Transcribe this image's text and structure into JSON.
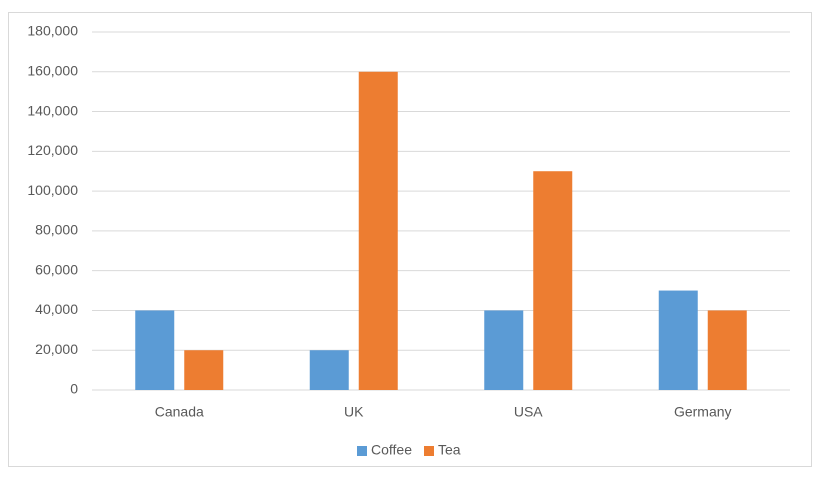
{
  "chart_data": {
    "type": "bar",
    "categories": [
      "Canada",
      "UK",
      "USA",
      "Germany"
    ],
    "series": [
      {
        "name": "Coffee",
        "color": "#5b9bd5",
        "values": [
          40000,
          20000,
          40000,
          50000
        ]
      },
      {
        "name": "Tea",
        "color": "#ed7d31",
        "values": [
          20000,
          160000,
          110000,
          40000
        ]
      }
    ],
    "ylim": [
      0,
      180000
    ],
    "yticks": [
      0,
      {
        "value": 20000,
        "label": "20,000"
      },
      {
        "value": 40000,
        "label": "40,000"
      },
      {
        "value": 60000,
        "label": "60,000"
      },
      {
        "value": 80000,
        "label": "80,000"
      },
      {
        "value": 100000,
        "label": "100,000"
      },
      {
        "value": 120000,
        "label": "120,000"
      },
      {
        "value": 140000,
        "label": "140,000"
      },
      {
        "value": 160000,
        "label": "160,000"
      },
      {
        "value": 180000,
        "label": "180,000"
      }
    ],
    "grid": true,
    "legend": "bottom"
  }
}
